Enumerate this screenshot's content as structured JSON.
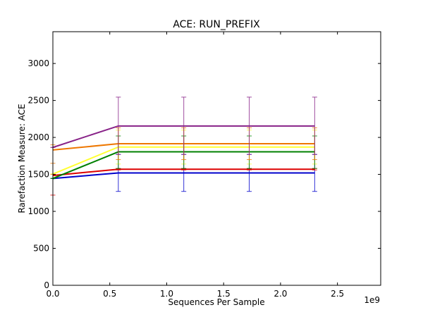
{
  "chart_data": {
    "type": "line",
    "title": "ACE: RUN_PREFIX",
    "xlabel": "Sequences Per Sample",
    "ylabel": "Rarefaction Measure: ACE",
    "x_offset_label": "1e9",
    "xlim": [
      0,
      2.88
    ],
    "ylim": [
      0,
      3430
    ],
    "x_ticks": [
      0.0,
      0.5,
      1.0,
      1.5,
      2.0,
      2.5
    ],
    "x_tick_labels": [
      "0.0",
      "0.5",
      "1.0",
      "1.5",
      "2.0",
      "2.5"
    ],
    "y_ticks": [
      0,
      500,
      1000,
      1500,
      2000,
      2500,
      3000
    ],
    "y_tick_labels": [
      "0",
      "500",
      "1000",
      "1500",
      "2000",
      "2500",
      "3000"
    ],
    "x": [
      0.0,
      0.575,
      1.15,
      1.725,
      2.3
    ],
    "grid": false,
    "series": [
      {
        "color": "#0000cc",
        "values": [
          1445,
          1520,
          1520,
          1520,
          1520
        ],
        "err_low": [
          1445,
          1270,
          1270,
          1270,
          1270
        ],
        "err_high": [
          1445,
          1770,
          1770,
          1770,
          1770
        ]
      },
      {
        "color": "#dd0000",
        "values": [
          1485,
          1570,
          1570,
          1570,
          1570
        ],
        "err_low": [
          1220,
          1560,
          1560,
          1560,
          1560
        ],
        "err_high": [
          1500,
          1580,
          1580,
          1580,
          1580
        ]
      },
      {
        "color": "#ffff33",
        "values": [
          1505,
          1870,
          1870,
          1870,
          1870
        ],
        "err_low": [
          1505,
          1640,
          1640,
          1640,
          1640
        ],
        "err_high": [
          1505,
          2100,
          2100,
          2100,
          2100
        ]
      },
      {
        "color": "#008000",
        "values": [
          1445,
          1805,
          1805,
          1805,
          1805
        ],
        "err_low": [
          1445,
          1580,
          1580,
          1580,
          1580
        ],
        "err_high": [
          1445,
          2020,
          2020,
          2020,
          2020
        ]
      },
      {
        "color": "#ee7700",
        "values": [
          1830,
          1915,
          1915,
          1915,
          1915
        ],
        "err_low": [
          1650,
          1700,
          1700,
          1700,
          1700
        ],
        "err_high": [
          1900,
          2130,
          2130,
          2130,
          2130
        ]
      },
      {
        "color": "#882288",
        "values": [
          1865,
          2155,
          2155,
          2155,
          2155
        ],
        "err_low": [
          1865,
          1770,
          1770,
          1770,
          1770
        ],
        "err_high": [
          1865,
          2545,
          2545,
          2545,
          2545
        ]
      }
    ]
  }
}
